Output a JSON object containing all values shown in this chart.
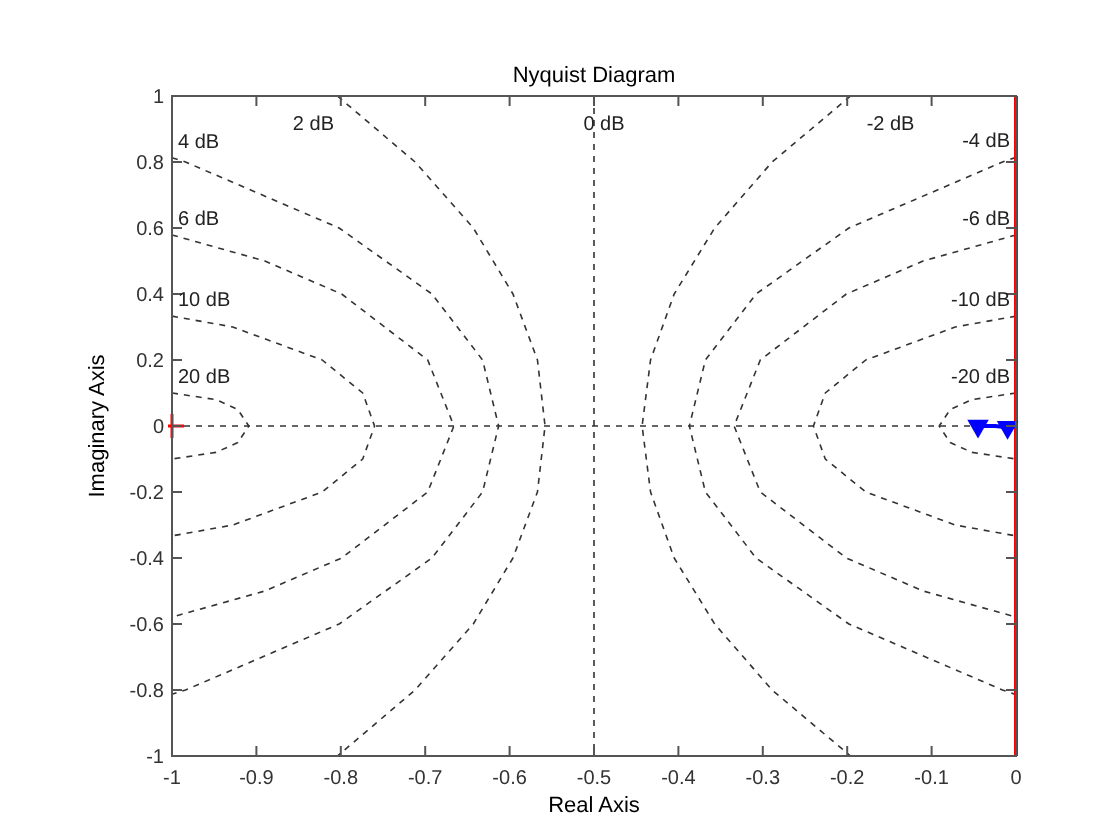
{
  "chart_data": {
    "type": "line",
    "title": "Nyquist Diagram",
    "xlabel": "Real Axis",
    "ylabel": "Imaginary Axis",
    "xlim": [
      -1,
      0
    ],
    "ylim": [
      -1,
      1
    ],
    "xticks": [
      -1,
      -0.9,
      -0.8,
      -0.7,
      -0.6,
      -0.5,
      -0.4,
      -0.3,
      -0.2,
      -0.1,
      0
    ],
    "yticks": [
      -1,
      -0.8,
      -0.6,
      -0.4,
      -0.2,
      0,
      0.2,
      0.4,
      0.6,
      0.8,
      1
    ],
    "series": [
      {
        "color": "#333333",
        "line_style": "dashed",
        "x": [
          -1,
          0
        ],
        "values": [
          0,
          0
        ]
      },
      {
        "name": "0 dB",
        "color": "#333333",
        "line_style": "dashed",
        "x": [
          -0.5,
          -0.5
        ],
        "values": [
          1,
          -1
        ]
      },
      {
        "name": "2 dB",
        "color": "#333333",
        "line_style": "dashed",
        "x": [
          -0.804,
          -0.712,
          -0.643,
          -0.596,
          -0.567,
          -0.558,
          -0.567,
          -0.596,
          -0.643,
          -0.712,
          -0.804
        ],
        "values": [
          1,
          0.8,
          0.6,
          0.4,
          0.2,
          0,
          -0.2,
          -0.4,
          -0.6,
          -0.8,
          -1
        ]
      },
      {
        "name": "-2 dB",
        "color": "#333333",
        "line_style": "dashed",
        "x": [
          -0.196,
          -0.289,
          -0.357,
          -0.405,
          -0.433,
          -0.443,
          -0.433,
          -0.405,
          -0.357,
          -0.289,
          -0.196
        ],
        "values": [
          1,
          0.8,
          0.6,
          0.4,
          0.2,
          0,
          -0.2,
          -0.4,
          -0.6,
          -0.8,
          -1
        ]
      },
      {
        "name": "4 dB",
        "color": "#333333",
        "line_style": "dashed",
        "x": [
          -1,
          -0.984,
          -0.802,
          -0.692,
          -0.632,
          -0.613,
          -0.632,
          -0.692,
          -0.802,
          -0.984,
          -1
        ],
        "values": [
          0.813,
          0.8,
          0.6,
          0.4,
          0.2,
          0,
          -0.2,
          -0.4,
          -0.6,
          -0.8,
          -0.813
        ]
      },
      {
        "name": "-4 dB",
        "color": "#333333",
        "line_style": "dashed",
        "x": [
          0,
          -0.016,
          -0.198,
          -0.308,
          -0.368,
          -0.387,
          -0.368,
          -0.308,
          -0.198,
          -0.016,
          0
        ],
        "values": [
          0.814,
          0.8,
          0.6,
          0.4,
          0.2,
          0,
          -0.2,
          -0.4,
          -0.6,
          -0.8,
          -0.814
        ]
      },
      {
        "name": "6 dB",
        "color": "#333333",
        "line_style": "dashed",
        "x": [
          -1,
          -0.89,
          -0.799,
          -0.697,
          -0.666,
          -0.697,
          -0.799,
          -0.89,
          -1
        ],
        "values": [
          0.579,
          0.5,
          0.4,
          0.2,
          0,
          -0.2,
          -0.4,
          -0.5,
          -0.579
        ]
      },
      {
        "name": "-6 dB",
        "color": "#333333",
        "line_style": "dashed",
        "x": [
          0,
          -0.11,
          -0.201,
          -0.303,
          -0.334,
          -0.303,
          -0.201,
          -0.11,
          0
        ],
        "values": [
          0.579,
          0.5,
          0.4,
          0.2,
          0,
          -0.2,
          -0.4,
          -0.5,
          -0.579
        ]
      },
      {
        "name": "10 dB",
        "color": "#333333",
        "line_style": "dashed",
        "x": [
          -1,
          -0.928,
          -0.822,
          -0.774,
          -0.76,
          -0.774,
          -0.822,
          -0.928,
          -1
        ],
        "values": [
          0.333,
          0.3,
          0.2,
          0.1,
          0,
          -0.1,
          -0.2,
          -0.3,
          -0.333
        ]
      },
      {
        "name": "-10 dB",
        "color": "#333333",
        "line_style": "dashed",
        "x": [
          0,
          -0.072,
          -0.178,
          -0.226,
          -0.24,
          -0.226,
          -0.178,
          -0.072,
          0
        ],
        "values": [
          0.333,
          0.3,
          0.2,
          0.1,
          0,
          -0.1,
          -0.2,
          -0.3,
          -0.333
        ]
      },
      {
        "name": "20 dB",
        "color": "#333333",
        "line_style": "dashed",
        "x": [
          -1,
          -0.948,
          -0.922,
          -0.909,
          -0.922,
          -0.948,
          -1
        ],
        "values": [
          0.1,
          0.08,
          0.05,
          0,
          -0.05,
          -0.08,
          -0.1
        ]
      },
      {
        "name": "-20 dB",
        "color": "#333333",
        "line_style": "dashed",
        "x": [
          0,
          -0.052,
          -0.078,
          -0.091,
          -0.078,
          -0.052,
          0
        ],
        "values": [
          0.1,
          0.08,
          0.05,
          0,
          -0.05,
          -0.08,
          -0.1
        ]
      },
      {
        "color": "#ff0000",
        "line_style": "solid",
        "x": [
          0,
          0
        ],
        "values": [
          -1,
          1
        ]
      },
      {
        "type": "scatter",
        "color": "#ff0000",
        "marker": "cross",
        "x": [
          -1
        ],
        "values": [
          0
        ]
      },
      {
        "color": "#0000ff",
        "line_style": "solid",
        "x": [
          -0.045,
          -0.025,
          -0.01,
          0
        ],
        "values": [
          0,
          0,
          -0.004,
          0
        ]
      },
      {
        "type": "scatter",
        "color": "#0000ff",
        "marker": "triangle",
        "x": [
          -0.045,
          -0.01
        ],
        "values": [
          0,
          -0.004
        ]
      }
    ]
  }
}
